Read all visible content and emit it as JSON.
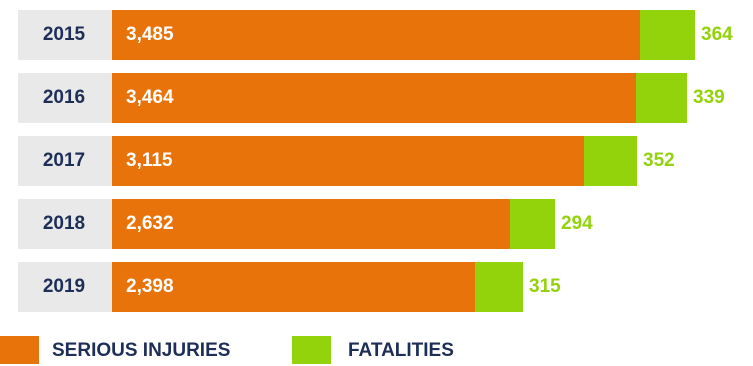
{
  "chart_data": {
    "type": "bar",
    "orientation": "horizontal",
    "stacked": true,
    "categories": [
      "2015",
      "2016",
      "2017",
      "2018",
      "2019"
    ],
    "series": [
      {
        "name": "SERIOUS INJURIES",
        "values": [
          3485,
          3464,
          3115,
          2632,
          2398
        ],
        "labels": [
          "3,485",
          "3,464",
          "3,115",
          "2,632",
          "2,398"
        ],
        "color": "#e8730a"
      },
      {
        "name": "FATALITIES",
        "values": [
          364,
          339,
          352,
          294,
          315
        ],
        "labels": [
          "364",
          "339",
          "352",
          "294",
          "315"
        ],
        "color": "#93d30b"
      }
    ],
    "title": "",
    "xlabel": "",
    "ylabel": "",
    "grid": false,
    "legend_placement": "bottom-left"
  },
  "colors": {
    "year_box": "#e9e9ea",
    "year_text": "#1d2e57",
    "legend_text": "#1d2e57",
    "injury_label_text": "#ffffff"
  }
}
